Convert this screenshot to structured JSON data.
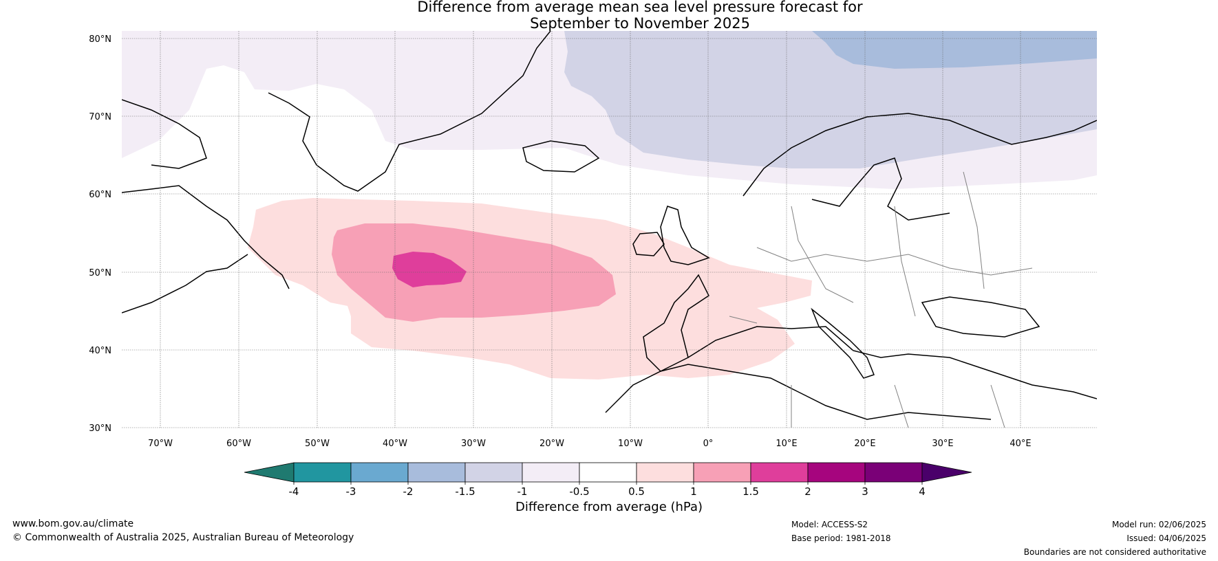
{
  "title_line1": "Difference from average mean sea level pressure forecast for",
  "title_line2": "September to November 2025",
  "lat_labels": [
    "80°N",
    "70°N",
    "60°N",
    "50°N",
    "40°N",
    "30°N"
  ],
  "lon_labels": [
    "70°W",
    "60°W",
    "50°W",
    "40°W",
    "30°W",
    "20°W",
    "10°W",
    "0°",
    "10°E",
    "20°E",
    "30°E",
    "40°E"
  ],
  "colorbar": {
    "title": "Difference from average (hPa)",
    "ticks": [
      "-4",
      "-3",
      "-2",
      "-1.5",
      "-1",
      "-0.5",
      "0.5",
      "1",
      "1.5",
      "2",
      "3",
      "4"
    ],
    "colors": {
      "under": "#1f7a70",
      "bins": [
        "#2196a0",
        "#6aa9d0",
        "#a8bcdc",
        "#d2d3e6",
        "#f3edf6",
        "#ffffff",
        "#fddede",
        "#f7a0b6",
        "#df3e9b",
        "#a6057e",
        "#7a0077"
      ],
      "over": "#4a006a"
    }
  },
  "footer": {
    "website": "www.bom.gov.au/climate",
    "copyright": "© Commonwealth of Australia 2025, Australian Bureau of Meteorology",
    "model": "Model: ACCESS-S2",
    "base_period": "Base period: 1981-2018",
    "model_run": "Model run: 02/06/2025",
    "issued": "Issued: 04/06/2025",
    "disclaimer": "Boundaries are not considered authoritative"
  }
}
